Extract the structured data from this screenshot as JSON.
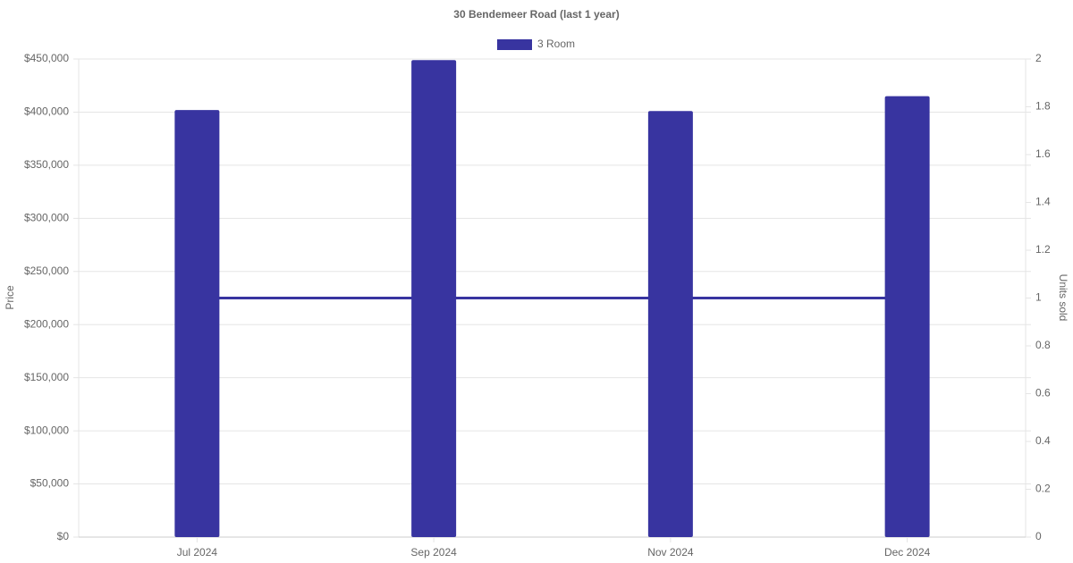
{
  "chart_data": {
    "type": "bar",
    "title": "30 Bendemeer Road (last 1 year)",
    "categories": [
      "Jul 2024",
      "Sep 2024",
      "Nov 2024",
      "Dec 2024"
    ],
    "series": [
      {
        "name": "3 Room",
        "type": "bar",
        "color": "#3834a0",
        "values": [
          402000,
          449000,
          401000,
          415000
        ]
      },
      {
        "type": "line",
        "axis": "y2",
        "color": "#3834a0",
        "values": [
          1,
          1,
          1,
          1
        ]
      }
    ],
    "y_label": "Price",
    "y2_label": "Units sold",
    "ylim": [
      0,
      450000
    ],
    "yticks": [
      {
        "value": 0,
        "label": "$0"
      },
      {
        "value": 50000,
        "label": "$50,000"
      },
      {
        "value": 100000,
        "label": "$100,000"
      },
      {
        "value": 150000,
        "label": "$150,000"
      },
      {
        "value": 200000,
        "label": "$200,000"
      },
      {
        "value": 250000,
        "label": "$250,000"
      },
      {
        "value": 300000,
        "label": "$300,000"
      },
      {
        "value": 350000,
        "label": "$350,000"
      },
      {
        "value": 400000,
        "label": "$400,000"
      },
      {
        "value": 450000,
        "label": "$450,000"
      }
    ],
    "y2lim": [
      0,
      2
    ],
    "y2ticks": [
      0,
      0.2,
      0.4,
      0.6,
      0.8,
      1,
      1.2,
      1.4,
      1.6,
      1.8,
      2
    ],
    "grid": true,
    "legend": "top"
  }
}
